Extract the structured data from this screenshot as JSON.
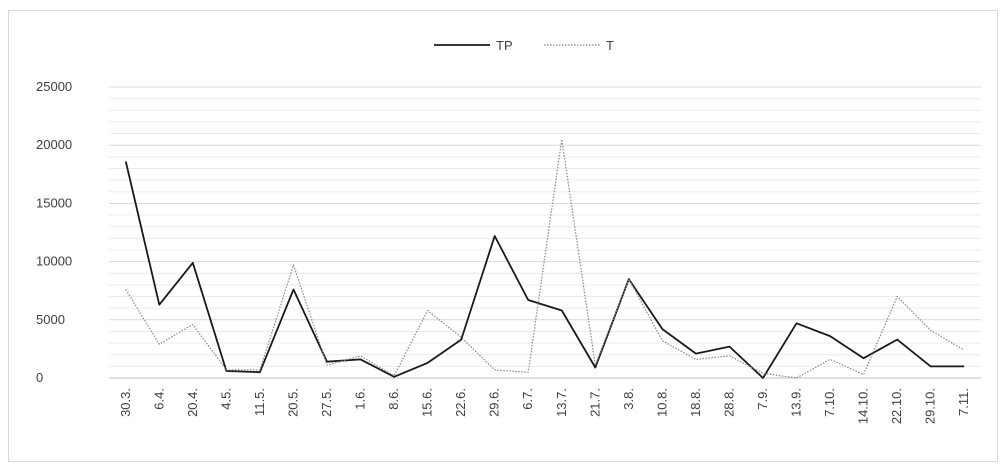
{
  "chart_data": {
    "type": "line",
    "title": "",
    "xlabel": "",
    "ylabel": "",
    "ylim": [
      0,
      25000
    ],
    "y_ticks": [
      0,
      5000,
      10000,
      15000,
      20000,
      25000
    ],
    "y_tick_labels": [
      "0",
      "5000",
      "10000",
      "15000",
      "20000",
      "25000"
    ],
    "minor_gridlines": true,
    "legend_position": "top-center",
    "categories": [
      "30.3.",
      "6.4.",
      "20.4.",
      "4.5.",
      "11.5.",
      "20.5.",
      "27.5.",
      "1.6.",
      "8.6.",
      "15.6.",
      "22.6.",
      "29.6.",
      "6.7.",
      "13.7.",
      "21.7.",
      "3.8.",
      "10.8.",
      "18.8.",
      "28.8.",
      "7.9.",
      "13.9.",
      "7.10.",
      "14.10.",
      "22.10.",
      "29.10.",
      "7.11."
    ],
    "series": [
      {
        "name": "TP",
        "style": "solid",
        "color": "#1a1a1a",
        "values": [
          18600,
          6300,
          9900,
          600,
          500,
          7600,
          1400,
          1600,
          100,
          1300,
          3300,
          12200,
          6700,
          5800,
          900,
          8500,
          4200,
          2100,
          2700,
          0,
          4700,
          3600,
          1700,
          3300,
          1000,
          1000
        ]
      },
      {
        "name": "T",
        "style": "dotted",
        "color": "#888888",
        "values": [
          7600,
          2900,
          4600,
          700,
          700,
          9700,
          1100,
          1900,
          200,
          5800,
          3500,
          700,
          500,
          20500,
          1100,
          8500,
          3200,
          1600,
          1900,
          400,
          0,
          1600,
          300,
          7000,
          4100,
          2400
        ]
      }
    ]
  }
}
